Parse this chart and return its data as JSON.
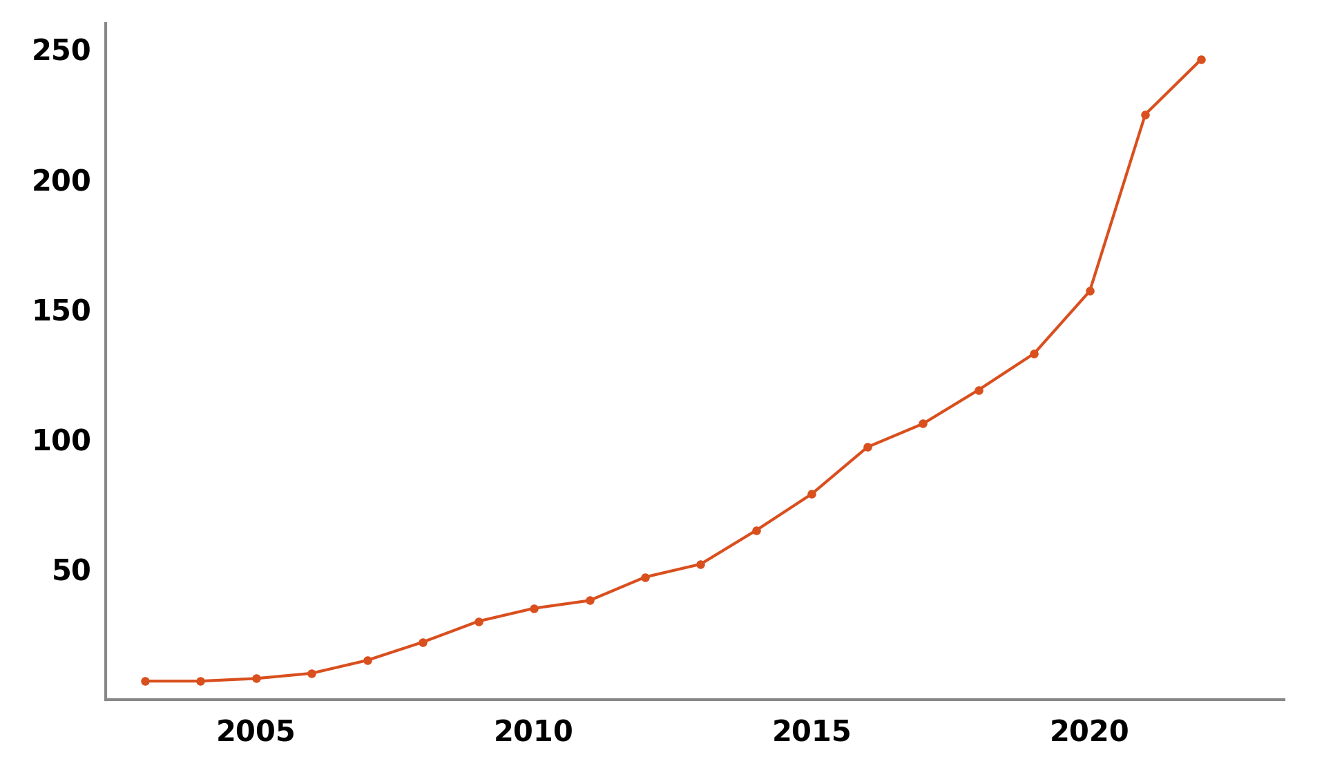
{
  "years": [
    2003,
    2004,
    2005,
    2006,
    2007,
    2008,
    2009,
    2010,
    2011,
    2012,
    2013,
    2014,
    2015,
    2016,
    2017,
    2018,
    2019,
    2020,
    2021,
    2022
  ],
  "values": [
    7,
    7,
    8,
    10,
    15,
    22,
    30,
    35,
    38,
    47,
    52,
    65,
    79,
    97,
    106,
    119,
    133,
    157,
    225,
    246
  ],
  "line_color": "#d94f1e",
  "marker_color": "#d94f1e",
  "marker_style": "o",
  "marker_size": 9,
  "line_width": 3.0,
  "background_color": "#ffffff",
  "yticks": [
    50,
    100,
    150,
    200,
    250
  ],
  "xticks": [
    2005,
    2010,
    2015,
    2020
  ],
  "ylim": [
    0,
    260
  ],
  "xlim": [
    2002.3,
    2023.5
  ],
  "tick_fontsize": 30,
  "spine_color": "#888888",
  "spine_linewidth": 3
}
